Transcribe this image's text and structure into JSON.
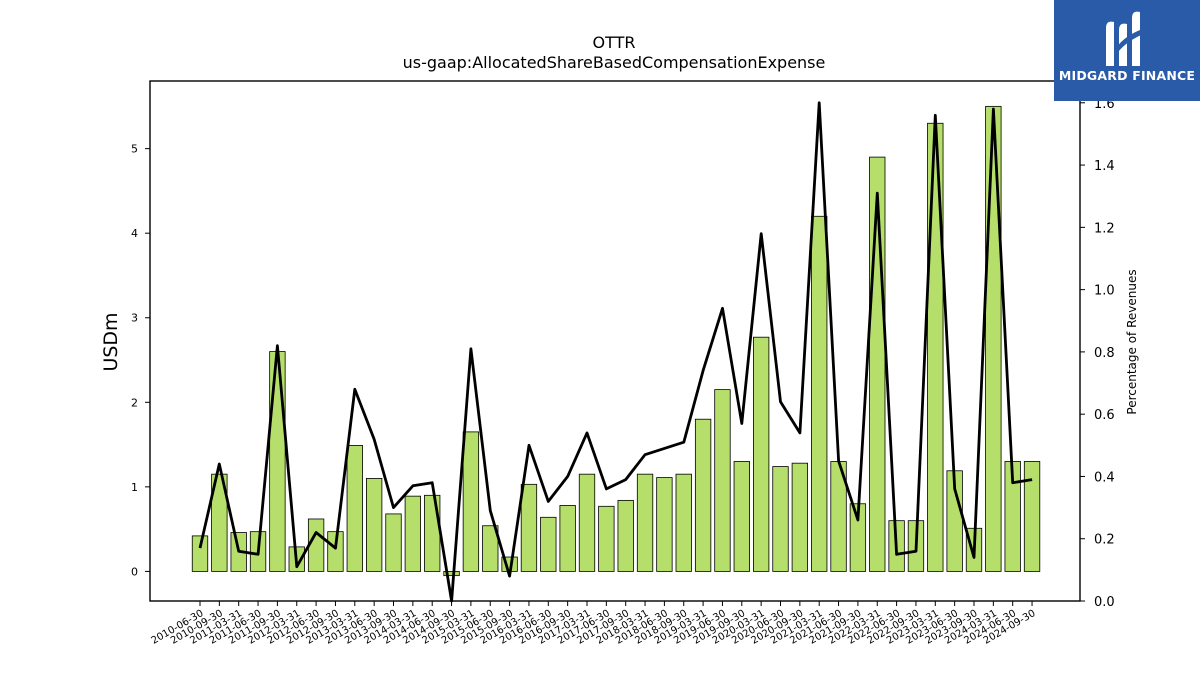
{
  "chart_data": {
    "type": "bar",
    "title": "OTTR",
    "subtitle": "us-gaap:AllocatedShareBasedCompensationExpense",
    "ylabel": "USDm",
    "y2label": "Percentage of Revenues",
    "ylim": [
      -0.35,
      5.8
    ],
    "y2lim": [
      0.0,
      1.67
    ],
    "yticks": [
      0,
      1,
      2,
      3,
      4,
      5
    ],
    "y2ticks": [
      0.0,
      0.2,
      0.4,
      0.6,
      0.8,
      1.0,
      1.2,
      1.4,
      1.6
    ],
    "bar_color": "#b5df6a",
    "line_color": "#000000",
    "categories": [
      "2010-06-30",
      "2010-09-30",
      "2011-03-31",
      "2011-06-30",
      "2011-09-30",
      "2012-03-31",
      "2012-06-30",
      "2012-09-30",
      "2013-03-31",
      "2013-06-30",
      "2013-09-30",
      "2014-03-31",
      "2014-06-30",
      "2014-09-30",
      "2015-03-31",
      "2015-06-30",
      "2015-09-30",
      "2016-03-31",
      "2016-06-30",
      "2016-09-30",
      "2017-03-31",
      "2017-06-30",
      "2017-09-30",
      "2018-03-31",
      "2018-06-30",
      "2018-09-30",
      "2019-03-31",
      "2019-06-30",
      "2019-09-30",
      "2020-03-31",
      "2020-06-30",
      "2020-09-30",
      "2021-03-31",
      "2021-06-30",
      "2021-09-30",
      "2022-03-31",
      "2022-06-30",
      "2022-09-30",
      "2023-03-31",
      "2023-06-30",
      "2023-09-30",
      "2024-03-31",
      "2024-06-30",
      "2024-09-30"
    ],
    "series": [
      {
        "name": "USDm",
        "kind": "bar",
        "axis": "left",
        "values": [
          0.42,
          1.15,
          0.46,
          0.47,
          2.6,
          0.29,
          0.62,
          0.47,
          1.49,
          1.1,
          0.68,
          0.89,
          0.9,
          -0.05,
          1.65,
          0.54,
          0.17,
          1.03,
          0.64,
          0.78,
          1.15,
          0.77,
          0.84,
          1.15,
          1.11,
          1.15,
          1.8,
          2.15,
          1.3,
          2.77,
          1.24,
          1.28,
          4.2,
          1.3,
          0.8,
          4.9,
          0.6,
          0.6,
          5.3,
          1.19,
          0.51,
          5.5,
          1.3,
          1.3
        ]
      },
      {
        "name": "Percentage of Revenues",
        "kind": "line",
        "axis": "right",
        "values": [
          0.17,
          0.44,
          0.16,
          0.15,
          0.82,
          0.11,
          0.22,
          0.17,
          0.68,
          0.52,
          0.3,
          0.37,
          0.38,
          0.0,
          0.81,
          0.29,
          0.08,
          0.5,
          0.32,
          0.4,
          0.54,
          0.36,
          0.39,
          0.47,
          0.49,
          0.51,
          0.74,
          0.94,
          0.57,
          1.18,
          0.64,
          0.54,
          1.6,
          0.45,
          0.26,
          1.31,
          0.15,
          0.16,
          1.56,
          0.36,
          0.14,
          1.58,
          0.38,
          0.39
        ]
      }
    ]
  },
  "logo": {
    "text": "MIDGARD FINANCE",
    "icon": "midgard-logo-icon",
    "background": "#2a5ba8"
  }
}
